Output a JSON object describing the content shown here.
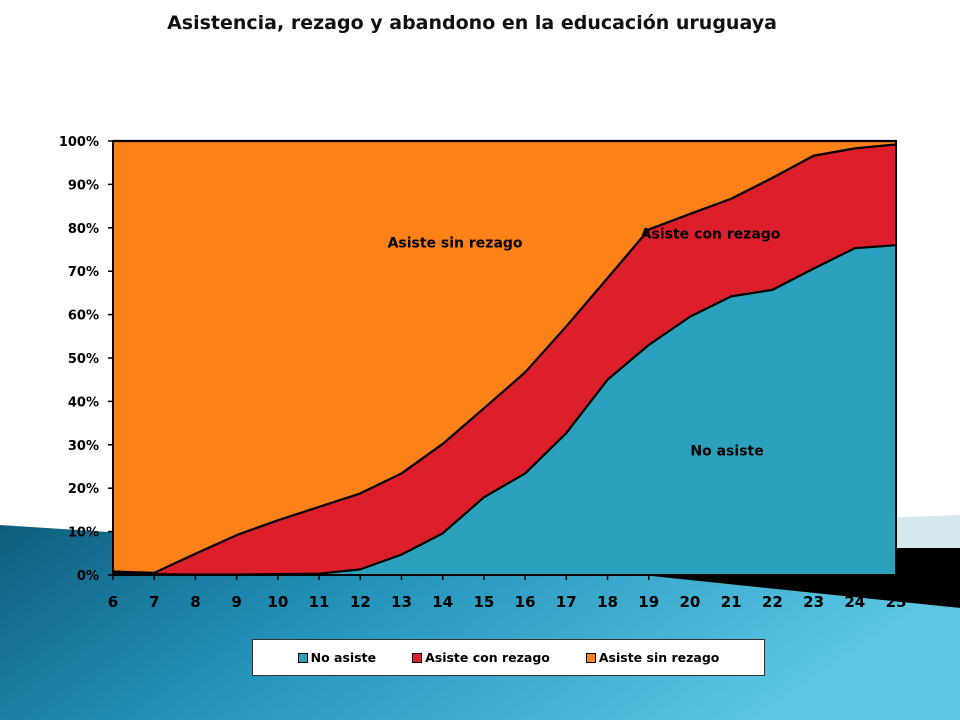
{
  "chart_data": {
    "type": "area",
    "stacked": true,
    "normalized": true,
    "title": "Asistencia, rezago y abandono en la educación uruguaya",
    "x": [
      6,
      7,
      8,
      9,
      10,
      11,
      12,
      13,
      14,
      15,
      16,
      17,
      18,
      19,
      20,
      21,
      22,
      23,
      24,
      25
    ],
    "x_tick_labels": [
      "6",
      "7",
      "8",
      "9",
      "10",
      "11",
      "12",
      "13",
      "14",
      "15",
      "16",
      "17",
      "18",
      "19",
      "20",
      "21",
      "22",
      "23",
      "24",
      "25"
    ],
    "y_tick_labels": [
      "0%",
      "10%",
      "20%",
      "30%",
      "40%",
      "50%",
      "60%",
      "70%",
      "80%",
      "90%",
      "100%"
    ],
    "ylim": [
      0,
      100
    ],
    "series": [
      {
        "name": "No asiste",
        "color": "#2ca1bd",
        "values": [
          0.5,
          0.2,
          0.1,
          0.1,
          0.2,
          0.3,
          1.3,
          4.7,
          9.6,
          17.9,
          23.4,
          32.7,
          45.0,
          53.0,
          59.5,
          64.2,
          65.7,
          70.6,
          75.3,
          76.0
        ]
      },
      {
        "name": "Asiste con rezago",
        "color": "#dc1f2b",
        "values": [
          0.3,
          0.3,
          4.8,
          9.1,
          12.4,
          15.4,
          17.5,
          18.7,
          20.6,
          20.5,
          23.3,
          24.6,
          23.4,
          26.6,
          23.7,
          22.5,
          25.8,
          26.0,
          23.0,
          23.2
        ]
      },
      {
        "name": "Asiste sin rezago",
        "color": "#fb8118",
        "values": [
          99.2,
          99.5,
          95.1,
          90.8,
          87.4,
          84.3,
          81.2,
          76.6,
          69.8,
          61.6,
          53.3,
          42.7,
          31.6,
          20.4,
          16.8,
          13.3,
          8.5,
          3.4,
          1.7,
          0.8
        ]
      }
    ],
    "annotations": [
      {
        "text": "Asiste sin rezago",
        "series": "Asiste sin rezago",
        "x": 14.3,
        "y": 75.5
      },
      {
        "text": "Asiste con rezago",
        "series": "Asiste con rezago",
        "x": 20.5,
        "y": 77.5
      },
      {
        "text": "No asiste",
        "series": "No asiste",
        "x": 20.9,
        "y": 27.5
      }
    ],
    "legend": {
      "position": "bottom",
      "entries": [
        "No asiste",
        "Asiste con rezago",
        "Asiste sin rezago"
      ]
    },
    "grid": false
  },
  "background": {
    "primary": "#ffffff",
    "swoosh_dark": "#0f5d7c",
    "swoosh_light": "#5cc6e4",
    "pale_band": "#d4e7ef",
    "black_band": "#000000"
  }
}
